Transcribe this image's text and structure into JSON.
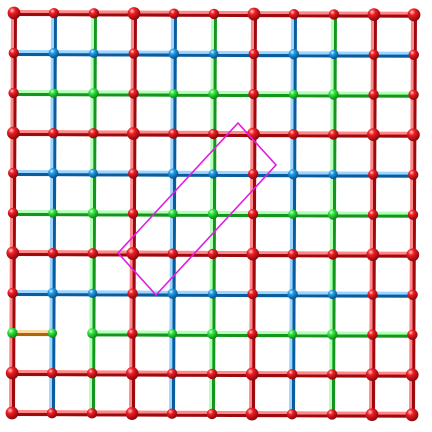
{
  "diagram": {
    "type": "ball-and-stick lattice",
    "grid": {
      "columns": 10,
      "rows": 10
    },
    "colors": {
      "red": "#e8141c",
      "blue": "#1e9be6",
      "green": "#2ee63a",
      "orange": "#f59c1f",
      "magenta": "#e31ae3",
      "background": "#ffffff"
    },
    "row_colors": [
      "red",
      "blue",
      "green",
      "red",
      "blue",
      "green",
      "red",
      "blue",
      "green",
      "red",
      "red"
    ],
    "column_colors": [
      "red",
      "blue",
      "green",
      "red",
      "blue",
      "green",
      "red",
      "blue",
      "green",
      "red",
      "red"
    ],
    "segment_overrides": [
      {
        "axis": "row",
        "line": 8,
        "span": [
          0,
          1
        ],
        "color": "orange"
      },
      {
        "axis": "row",
        "line": 8,
        "span": [
          1,
          2
        ],
        "color": "none"
      },
      {
        "axis": "column",
        "line": 2,
        "span": [
          7,
          8
        ],
        "color": "green"
      }
    ],
    "highlight": {
      "shape": "tilted rectangle",
      "color": "magenta",
      "corners_in_grid_units": [
        [
          2.6,
          6.0
        ],
        [
          5.6,
          2.75
        ],
        [
          6.55,
          3.8
        ],
        [
          3.55,
          7.05
        ]
      ]
    }
  }
}
